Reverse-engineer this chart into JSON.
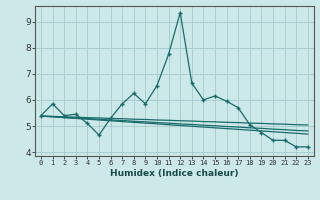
{
  "xlabel": "Humidex (Indice chaleur)",
  "background_color": "#cce8e8",
  "grid_color": "#aacfcf",
  "line_color": "#1a6b6b",
  "x_values": [
    0,
    1,
    2,
    3,
    4,
    5,
    6,
    7,
    8,
    9,
    10,
    11,
    12,
    13,
    14,
    15,
    16,
    17,
    18,
    19,
    20,
    21,
    22,
    23
  ],
  "x_labels": [
    "0",
    "1",
    "2",
    "3",
    "4",
    "5",
    "6",
    "7",
    "8",
    "9",
    "10",
    "11",
    "12",
    "13",
    "14",
    "15",
    "16",
    "17",
    "18",
    "19",
    "20",
    "21",
    "22",
    "23"
  ],
  "y_main": [
    5.4,
    5.85,
    5.4,
    5.45,
    5.1,
    4.65,
    5.3,
    5.85,
    6.25,
    5.85,
    6.55,
    7.75,
    9.35,
    6.65,
    6.0,
    6.15,
    5.95,
    5.7,
    5.05,
    4.75,
    4.45,
    4.45,
    4.2,
    4.2
  ],
  "y_trend1": [
    5.38,
    5.35,
    5.32,
    5.29,
    5.26,
    5.23,
    5.2,
    5.17,
    5.14,
    5.11,
    5.08,
    5.05,
    5.02,
    4.99,
    4.96,
    4.93,
    4.9,
    4.87,
    4.84,
    4.81,
    4.78,
    4.75,
    4.72,
    4.69
  ],
  "y_trend2": [
    5.38,
    5.36,
    5.33,
    5.31,
    5.28,
    5.26,
    5.23,
    5.21,
    5.18,
    5.16,
    5.13,
    5.11,
    5.08,
    5.06,
    5.03,
    5.01,
    4.98,
    4.96,
    4.93,
    4.91,
    4.88,
    4.86,
    4.83,
    4.81
  ],
  "y_trend3": [
    5.38,
    5.37,
    5.35,
    5.34,
    5.32,
    5.31,
    5.29,
    5.28,
    5.26,
    5.25,
    5.23,
    5.22,
    5.2,
    5.19,
    5.17,
    5.16,
    5.14,
    5.13,
    5.11,
    5.1,
    5.08,
    5.07,
    5.05,
    5.04
  ],
  "ylim": [
    3.85,
    9.6
  ],
  "xlim": [
    -0.5,
    23.5
  ],
  "yticks": [
    4,
    5,
    6,
    7,
    8,
    9
  ],
  "spine_color": "#555555"
}
